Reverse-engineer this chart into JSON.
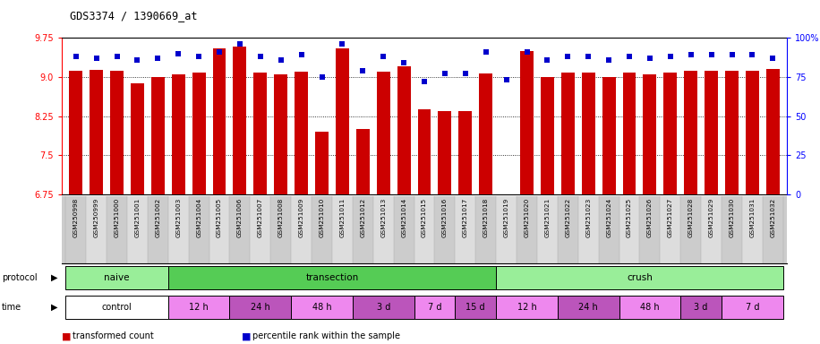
{
  "title": "GDS3374 / 1390669_at",
  "samples": [
    "GSM250998",
    "GSM250999",
    "GSM251000",
    "GSM251001",
    "GSM251002",
    "GSM251003",
    "GSM251004",
    "GSM251005",
    "GSM251006",
    "GSM251007",
    "GSM251008",
    "GSM251009",
    "GSM251010",
    "GSM251011",
    "GSM251012",
    "GSM251013",
    "GSM251014",
    "GSM251015",
    "GSM251016",
    "GSM251017",
    "GSM251018",
    "GSM251019",
    "GSM251020",
    "GSM251021",
    "GSM251022",
    "GSM251023",
    "GSM251024",
    "GSM251025",
    "GSM251026",
    "GSM251027",
    "GSM251028",
    "GSM251029",
    "GSM251030",
    "GSM251031",
    "GSM251032"
  ],
  "bar_values": [
    9.12,
    9.13,
    9.12,
    8.88,
    9.0,
    9.05,
    9.08,
    9.55,
    9.58,
    9.08,
    9.05,
    9.1,
    7.95,
    9.55,
    8.0,
    9.1,
    9.2,
    8.38,
    8.35,
    8.35,
    9.06,
    6.72,
    9.5,
    9.0,
    9.08,
    9.08,
    9.0,
    9.08,
    9.05,
    9.08,
    9.12,
    9.12,
    9.12,
    9.12,
    9.15
  ],
  "percentile_values": [
    88,
    87,
    88,
    86,
    87,
    90,
    88,
    91,
    96,
    88,
    86,
    89,
    75,
    96,
    79,
    88,
    84,
    72,
    77,
    77,
    91,
    73,
    91,
    86,
    88,
    88,
    86,
    88,
    87,
    88,
    89,
    89,
    89,
    89,
    87
  ],
  "ylim_left": [
    6.75,
    9.75
  ],
  "ylim_right": [
    0,
    100
  ],
  "yticks_left": [
    6.75,
    7.5,
    8.25,
    9.0,
    9.75
  ],
  "yticks_right": [
    0,
    25,
    50,
    75,
    100
  ],
  "ytick_labels_right": [
    "0",
    "25",
    "50",
    "75",
    "100%"
  ],
  "bar_color": "#cc0000",
  "percentile_color": "#0000cc",
  "bar_bottom": 6.75,
  "protocol_groups": [
    {
      "label": "naive",
      "start": 0,
      "end": 4,
      "color": "#99ee99"
    },
    {
      "label": "transection",
      "start": 5,
      "end": 20,
      "color": "#55cc55"
    },
    {
      "label": "crush",
      "start": 21,
      "end": 34,
      "color": "#99ee99"
    }
  ],
  "time_groups": [
    {
      "label": "control",
      "start": 0,
      "end": 4,
      "color": "#ffffff"
    },
    {
      "label": "12 h",
      "start": 5,
      "end": 7,
      "color": "#ee88ee"
    },
    {
      "label": "24 h",
      "start": 8,
      "end": 10,
      "color": "#bb55bb"
    },
    {
      "label": "48 h",
      "start": 11,
      "end": 13,
      "color": "#ee88ee"
    },
    {
      "label": "3 d",
      "start": 14,
      "end": 16,
      "color": "#bb55bb"
    },
    {
      "label": "7 d",
      "start": 17,
      "end": 18,
      "color": "#ee88ee"
    },
    {
      "label": "15 d",
      "start": 19,
      "end": 20,
      "color": "#bb55bb"
    },
    {
      "label": "12 h",
      "start": 21,
      "end": 23,
      "color": "#ee88ee"
    },
    {
      "label": "24 h",
      "start": 24,
      "end": 26,
      "color": "#bb55bb"
    },
    {
      "label": "48 h",
      "start": 27,
      "end": 29,
      "color": "#ee88ee"
    },
    {
      "label": "3 d",
      "start": 30,
      "end": 31,
      "color": "#bb55bb"
    },
    {
      "label": "7 d",
      "start": 32,
      "end": 34,
      "color": "#ee88ee"
    }
  ],
  "legend_items": [
    {
      "label": "transformed count",
      "color": "#cc0000"
    },
    {
      "label": "percentile rank within the sample",
      "color": "#0000cc"
    }
  ],
  "background_color": "#ffffff",
  "col_colors": [
    "#cccccc",
    "#dddddd"
  ]
}
